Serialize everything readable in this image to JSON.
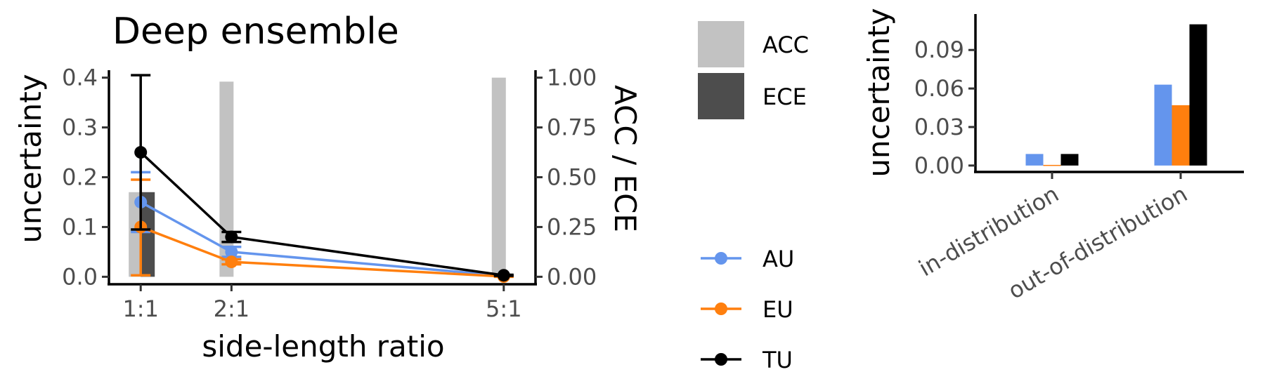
{
  "chart_data": [
    {
      "type": "line",
      "title": "Deep ensemble",
      "xlabel": "side-length ratio",
      "ylabel": "uncertainty",
      "y2label": "ACC / ECE",
      "x": [
        1,
        2,
        5
      ],
      "x_tick_labels": [
        "1:1",
        "2:1",
        "5:1"
      ],
      "xlim": [
        0.65,
        5.35
      ],
      "ylim": [
        -0.015,
        0.415
      ],
      "y_ticks": [
        0.0,
        0.1,
        0.2,
        0.3,
        0.4
      ],
      "y_tick_labels": [
        "0.0",
        "0.1",
        "0.2",
        "0.3",
        "0.4"
      ],
      "y2_ticks": [
        0.0,
        0.25,
        0.5,
        0.75,
        1.0
      ],
      "y2_tick_labels": [
        "0.00",
        "0.25",
        "0.50",
        "0.75",
        "1.00"
      ],
      "y2lim": [
        -0.0375,
        1.0375
      ],
      "series": [
        {
          "name": "AU",
          "color": "#6495ED",
          "values": [
            0.15,
            0.05,
            0.002
          ],
          "err_low": [
            0.09,
            0.04,
            0.001
          ],
          "err_high": [
            0.21,
            0.06,
            0.003
          ]
        },
        {
          "name": "EU",
          "color": "#FF7F0E",
          "values": [
            0.1,
            0.03,
            0.0005
          ],
          "err_low": [
            0.003,
            0.025,
            0.0
          ],
          "err_high": [
            0.195,
            0.035,
            0.001
          ]
        },
        {
          "name": "TU",
          "color": "#000000",
          "values": [
            0.25,
            0.08,
            0.003
          ],
          "err_low": [
            0.095,
            0.07,
            0.002
          ],
          "err_high": [
            0.405,
            0.09,
            0.004
          ]
        }
      ],
      "bars": [
        {
          "name": "ACC",
          "color": "#C2C2C2",
          "values": [
            0.425,
            0.98,
            1.0
          ]
        },
        {
          "name": "ECE",
          "color": "#4D4D4D",
          "values": [
            0.425,
            0.0,
            0.0
          ]
        }
      ],
      "legend_bars": [
        "ACC",
        "ECE"
      ],
      "legend_lines": [
        "AU",
        "EU",
        "TU"
      ]
    },
    {
      "type": "bar",
      "ylabel": "uncertainty",
      "categories": [
        "in-distribution",
        "out-of-distribution"
      ],
      "ylim": [
        -0.005,
        0.118
      ],
      "y_ticks": [
        0.0,
        0.03,
        0.06,
        0.09
      ],
      "y_tick_labels": [
        "0.00",
        "0.03",
        "0.06",
        "0.09"
      ],
      "series": [
        {
          "color": "#6495ED",
          "values": [
            0.009,
            0.063
          ]
        },
        {
          "color": "#FF7F0E",
          "values": [
            0.0005,
            0.047
          ]
        },
        {
          "color": "#000000",
          "values": [
            0.009,
            0.11
          ]
        }
      ]
    }
  ]
}
